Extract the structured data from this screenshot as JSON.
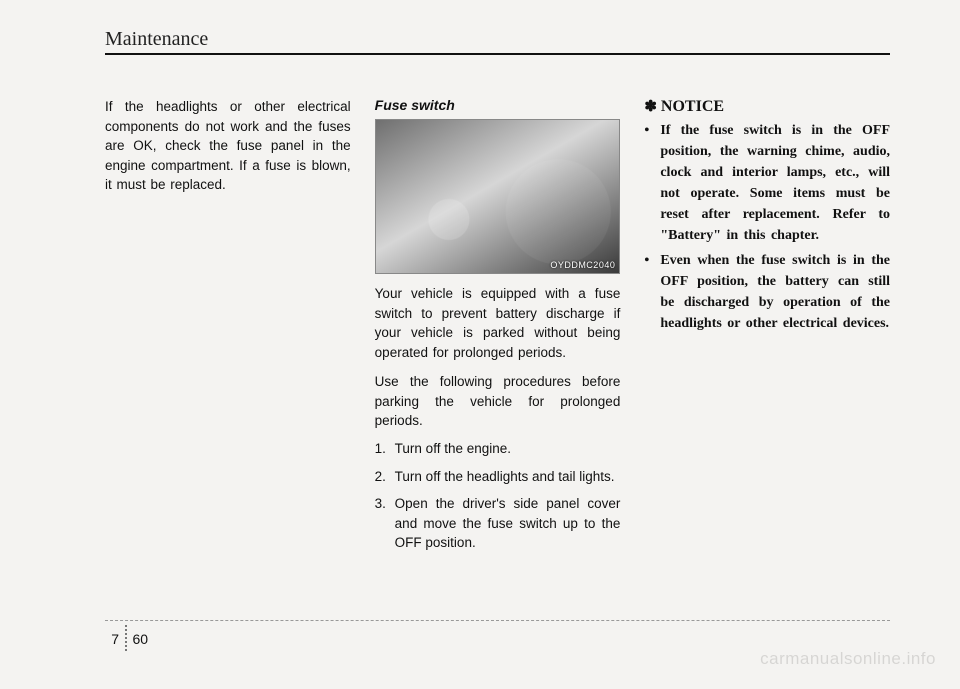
{
  "header": {
    "title": "Maintenance"
  },
  "col1": {
    "p1": "If the headlights or other electrical components do not work and the fuses are OK, check the fuse panel in the engine compartment. If a fuse is blown, it must be replaced."
  },
  "col2": {
    "subhead": "Fuse switch",
    "figure_id": "OYDDMC2040",
    "p1": "Your vehicle is equipped with a fuse switch to prevent battery discharge if your vehicle is parked without being operated for prolonged periods.",
    "p2": "Use the following procedures before parking the vehicle for prolonged periods.",
    "steps": {
      "n1": "1.",
      "t1": "Turn off the engine.",
      "n2": "2.",
      "t2": "Turn off the headlights and tail lights.",
      "n3": "3.",
      "t3": "Open the driver's side panel cover and move the fuse switch up to the OFF position."
    }
  },
  "col3": {
    "notice_symbol": "✽",
    "notice": "NOTICE",
    "b1": "If the fuse switch is in the OFF position, the warning chime, audio, clock and interior lamps, etc., will not operate. Some items must be reset after replacement. Refer to \"Battery\" in this chapter.",
    "b2": "Even when the fuse switch is in the OFF position, the battery can still be discharged by operation of the headlights or other electrical devices."
  },
  "footer": {
    "section": "7",
    "page": "60"
  },
  "watermark": "carmanualsonline.info"
}
